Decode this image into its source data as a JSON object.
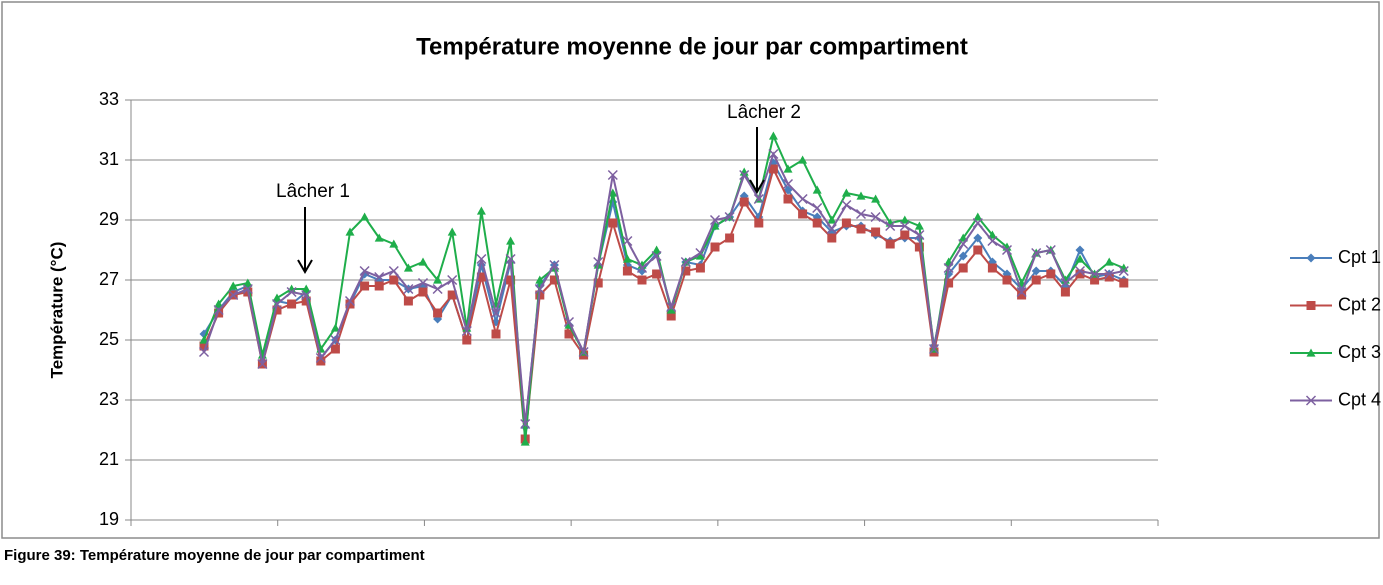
{
  "chart_data": {
    "type": "line",
    "title": "Température moyenne de jour par compartiment",
    "y_label": "Température (°C)",
    "caption": "Figure 39: Température moyenne de jour par compartiment",
    "annotations": [
      "Lâcher 1",
      "Lâcher 2"
    ],
    "ylim": [
      19,
      33
    ],
    "yticks": [
      19,
      21,
      23,
      25,
      27,
      29,
      31,
      33
    ],
    "grid": true,
    "legend": "right",
    "categories": [
      null,
      null,
      null,
      null,
      null,
      null,
      null,
      null,
      null,
      null,
      null,
      null,
      null,
      null,
      null,
      null,
      null,
      null,
      null,
      null,
      null,
      null,
      null,
      null,
      null,
      null,
      null,
      null,
      null,
      null,
      null,
      null,
      null,
      null,
      null,
      null,
      null,
      null,
      null,
      null,
      null,
      null,
      null,
      null,
      null,
      null,
      null,
      null,
      null,
      null,
      null,
      null,
      null,
      null,
      null,
      null,
      null,
      null,
      null,
      null,
      null,
      null,
      null,
      null
    ],
    "series": [
      {
        "name": "Cpt 1",
        "color": "#4a7ebb",
        "marker": "diamond",
        "values": [
          25.2,
          26.0,
          26.6,
          26.8,
          24.3,
          26.3,
          26.2,
          26.6,
          24.4,
          25.0,
          26.2,
          27.2,
          27.0,
          27.0,
          26.7,
          26.8,
          25.7,
          26.5,
          25.0,
          27.5,
          25.6,
          27.6,
          22.1,
          26.8,
          27.5,
          25.5,
          24.6,
          27.5,
          29.6,
          27.5,
          27.3,
          27.9,
          26.0,
          27.6,
          27.5,
          28.8,
          29.1,
          29.8,
          29.1,
          30.9,
          30.0,
          29.3,
          29.1,
          28.6,
          28.8,
          28.8,
          28.5,
          28.3,
          28.4,
          28.4,
          24.8,
          27.2,
          27.8,
          28.4,
          27.6,
          27.2,
          26.7,
          27.3,
          27.3,
          26.8,
          28.0,
          27.1,
          27.2,
          27.0
        ]
      },
      {
        "name": "Cpt 2",
        "color": "#be4b48",
        "marker": "square",
        "values": [
          24.8,
          25.9,
          26.5,
          26.6,
          24.2,
          26.0,
          26.2,
          26.3,
          24.3,
          24.7,
          26.2,
          26.8,
          26.8,
          27.0,
          26.3,
          26.6,
          25.9,
          26.5,
          25.0,
          27.1,
          25.2,
          27.0,
          21.7,
          26.5,
          27.0,
          25.2,
          24.5,
          26.9,
          28.9,
          27.3,
          27.0,
          27.2,
          25.8,
          27.3,
          27.4,
          28.1,
          28.4,
          29.6,
          28.9,
          30.7,
          29.7,
          29.2,
          28.9,
          28.4,
          28.9,
          28.7,
          28.6,
          28.2,
          28.5,
          28.1,
          24.6,
          26.9,
          27.4,
          28.0,
          27.4,
          27.0,
          26.5,
          27.0,
          27.2,
          26.6,
          27.2,
          27.0,
          27.1,
          26.9
        ]
      },
      {
        "name": "Cpt 3",
        "color": "#1fae4b",
        "marker": "triangle",
        "values": [
          25.0,
          26.2,
          26.8,
          26.9,
          24.5,
          26.4,
          26.7,
          26.7,
          24.7,
          25.4,
          28.6,
          29.1,
          28.4,
          28.2,
          27.4,
          27.6,
          27.0,
          28.6,
          25.4,
          29.3,
          26.2,
          28.3,
          21.6,
          27.0,
          27.4,
          25.5,
          24.6,
          27.5,
          29.9,
          27.7,
          27.5,
          28.0,
          26.0,
          27.6,
          27.8,
          28.8,
          29.1,
          30.6,
          29.7,
          31.8,
          30.7,
          31.0,
          30.0,
          29.0,
          29.9,
          29.8,
          29.7,
          28.9,
          29.0,
          28.8,
          24.7,
          27.6,
          28.4,
          29.1,
          28.5,
          28.1,
          26.9,
          27.9,
          28.0,
          27.0,
          27.7,
          27.2,
          27.6,
          27.4
        ]
      },
      {
        "name": "Cpt 4",
        "color": "#7d60a0",
        "marker": "x",
        "values": [
          24.6,
          26.0,
          26.5,
          26.7,
          24.2,
          26.2,
          26.6,
          26.5,
          24.4,
          25.0,
          26.3,
          27.3,
          27.1,
          27.3,
          26.7,
          26.9,
          26.7,
          27.0,
          25.3,
          27.7,
          25.9,
          27.7,
          22.2,
          26.7,
          27.5,
          25.6,
          24.6,
          27.6,
          30.5,
          28.3,
          27.4,
          27.8,
          26.1,
          27.6,
          27.9,
          29.0,
          29.1,
          30.5,
          29.7,
          31.2,
          30.2,
          29.7,
          29.4,
          28.7,
          29.5,
          29.2,
          29.1,
          28.8,
          28.8,
          28.5,
          24.7,
          27.4,
          28.2,
          28.9,
          28.3,
          28.0,
          26.6,
          27.9,
          28.0,
          26.9,
          27.3,
          27.2,
          27.2,
          27.3
        ]
      }
    ]
  }
}
